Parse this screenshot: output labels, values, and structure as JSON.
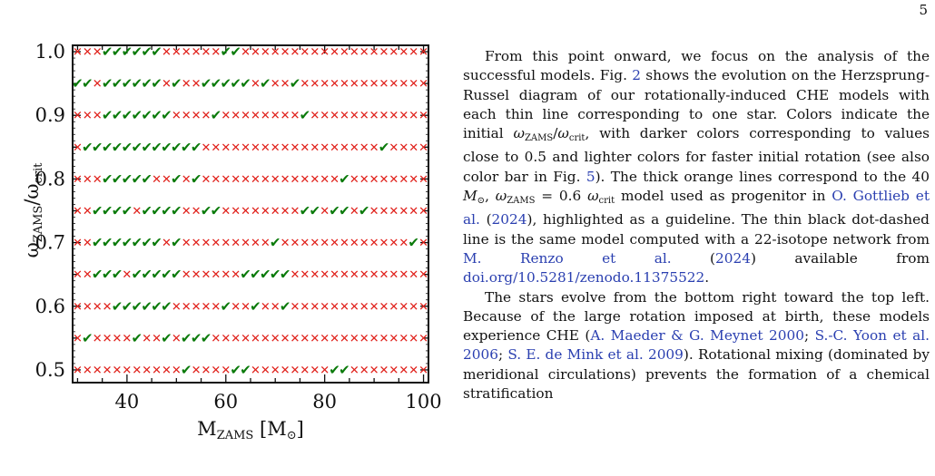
{
  "page": {
    "number": "5"
  },
  "figure": {
    "y_tick_labels": [
      "1.0",
      "0.9",
      "0.8",
      "0.7",
      "0.6",
      "0.5"
    ],
    "x_tick_labels": [
      "40",
      "60",
      "80",
      "100"
    ]
  },
  "chart_data": {
    "type": "scatter",
    "title": "",
    "xlabel": "M_ZAMS [M_⊙]",
    "ylabel": "ω_ZAMS/ω_crit",
    "xlim": [
      29,
      101
    ],
    "ylim": [
      0.48,
      1.01
    ],
    "grid": false,
    "legend": "none",
    "marker_key": {
      "check": "successful model (green tick)",
      "cross": "unsuccessful model (red cross)"
    },
    "x": [
      30,
      32,
      34,
      36,
      38,
      40,
      42,
      44,
      46,
      48,
      50,
      52,
      54,
      56,
      58,
      60,
      62,
      64,
      66,
      68,
      70,
      72,
      74,
      76,
      78,
      80,
      82,
      84,
      86,
      88,
      90,
      92,
      94,
      96,
      98,
      100
    ],
    "rows": [
      {
        "y": 1.0,
        "marks": "xxxooooooxxxxxxooxxxxxxxxxxxxxxxxxxx"
      },
      {
        "y": 0.95,
        "marks": "ooxooooooxoxxoooooxoxxoxxxxxxxxxxxxx"
      },
      {
        "y": 0.9,
        "marks": "xxxoooooooxxxxoxxxxxxxxoxxxxxxxxxxxx"
      },
      {
        "y": 0.85,
        "marks": "xooooooooooooxxxxxxxxxxxxxxxxxxoxxxx"
      },
      {
        "y": 0.8,
        "marks": "xxxoooooxxoxoxxxxxxxxxxxxxxoxxxxxxxx"
      },
      {
        "y": 0.75,
        "marks": "xxooooxooooxxooxxxxxxxxooxooxoxxxxxx"
      },
      {
        "y": 0.7,
        "marks": "xxoooooooxoxxxxxxxxxoxxxxxxxxxxxxxox"
      },
      {
        "y": 0.65,
        "marks": "xxoooxoooooxxxxxxoooooxxxxxxxxxxxxxx"
      },
      {
        "y": 0.6,
        "marks": "xxxxooooooxxxxxoxxoxxoxxxxxxxxxxxxxx"
      },
      {
        "y": 0.55,
        "marks": "xoxxxxoxxoxoooxxxxxxxxxxxxxxxxxxxxxx"
      },
      {
        "y": 0.5,
        "marks": "xxxxxxxxxxxoxxxxooxxxxxxxxooxxxxxxxx"
      }
    ]
  },
  "text": {
    "p1": [
      {
        "t": "From this point onward, we focus on the analysis of the successful models. Fig. "
      },
      {
        "t": "2",
        "link": true
      },
      {
        "t": " shows the evolution on the Herzsprung-Russel diagram of our rotationally-induced CHE models with each thin line corresponding to one star. Colors indicate the initial "
      },
      {
        "t": "ω",
        "math": true
      },
      {
        "t": "ZAMS",
        "sub": true
      },
      {
        "t": "/"
      },
      {
        "t": "ω",
        "math": true
      },
      {
        "t": "crit",
        "sub": true
      },
      {
        "t": ", with darker colors corresponding to values close to 0.5 and lighter colors for faster initial rotation (see also color bar in Fig. "
      },
      {
        "t": "5",
        "link": true
      },
      {
        "t": "). The thick orange lines correspond to the 40 "
      },
      {
        "t": "M",
        "math": true
      },
      {
        "t": "⊙",
        "sub": true
      },
      {
        "t": ", "
      },
      {
        "t": "ω",
        "math": true
      },
      {
        "t": "ZAMS",
        "sub": true
      },
      {
        "t": " = 0.6 "
      },
      {
        "t": "ω",
        "math": true
      },
      {
        "t": "crit",
        "sub": true
      },
      {
        "t": " model used as progenitor in "
      },
      {
        "t": "O. Gottlieb et al.",
        "link": true
      },
      {
        "t": " ("
      },
      {
        "t": "2024",
        "link": true
      },
      {
        "t": "), highlighted as a guideline. The thin black dot-dashed line is the same model computed with a 22-isotope network from "
      },
      {
        "t": "M. Renzo et al.",
        "link": true
      },
      {
        "t": " ("
      },
      {
        "t": "2024",
        "link": true
      },
      {
        "t": ") available from "
      },
      {
        "t": "doi.org/10.5281/zenodo.11375522",
        "link": true
      },
      {
        "t": "."
      }
    ],
    "p2": [
      {
        "t": "The stars evolve from the bottom right toward the top left. Because of the large rotation imposed at birth, these models experience CHE ("
      },
      {
        "t": "A. Maeder & G. Meynet 2000",
        "link": true
      },
      {
        "t": "; "
      },
      {
        "t": "S.-C. Yoon et al. 2006",
        "link": true
      },
      {
        "t": "; "
      },
      {
        "t": "S. E. de Mink et al. 2009",
        "link": true
      },
      {
        "t": "). Rotational mixing (dominated by meridional circulations) prevents the formation of a chemical stratification"
      }
    ]
  }
}
